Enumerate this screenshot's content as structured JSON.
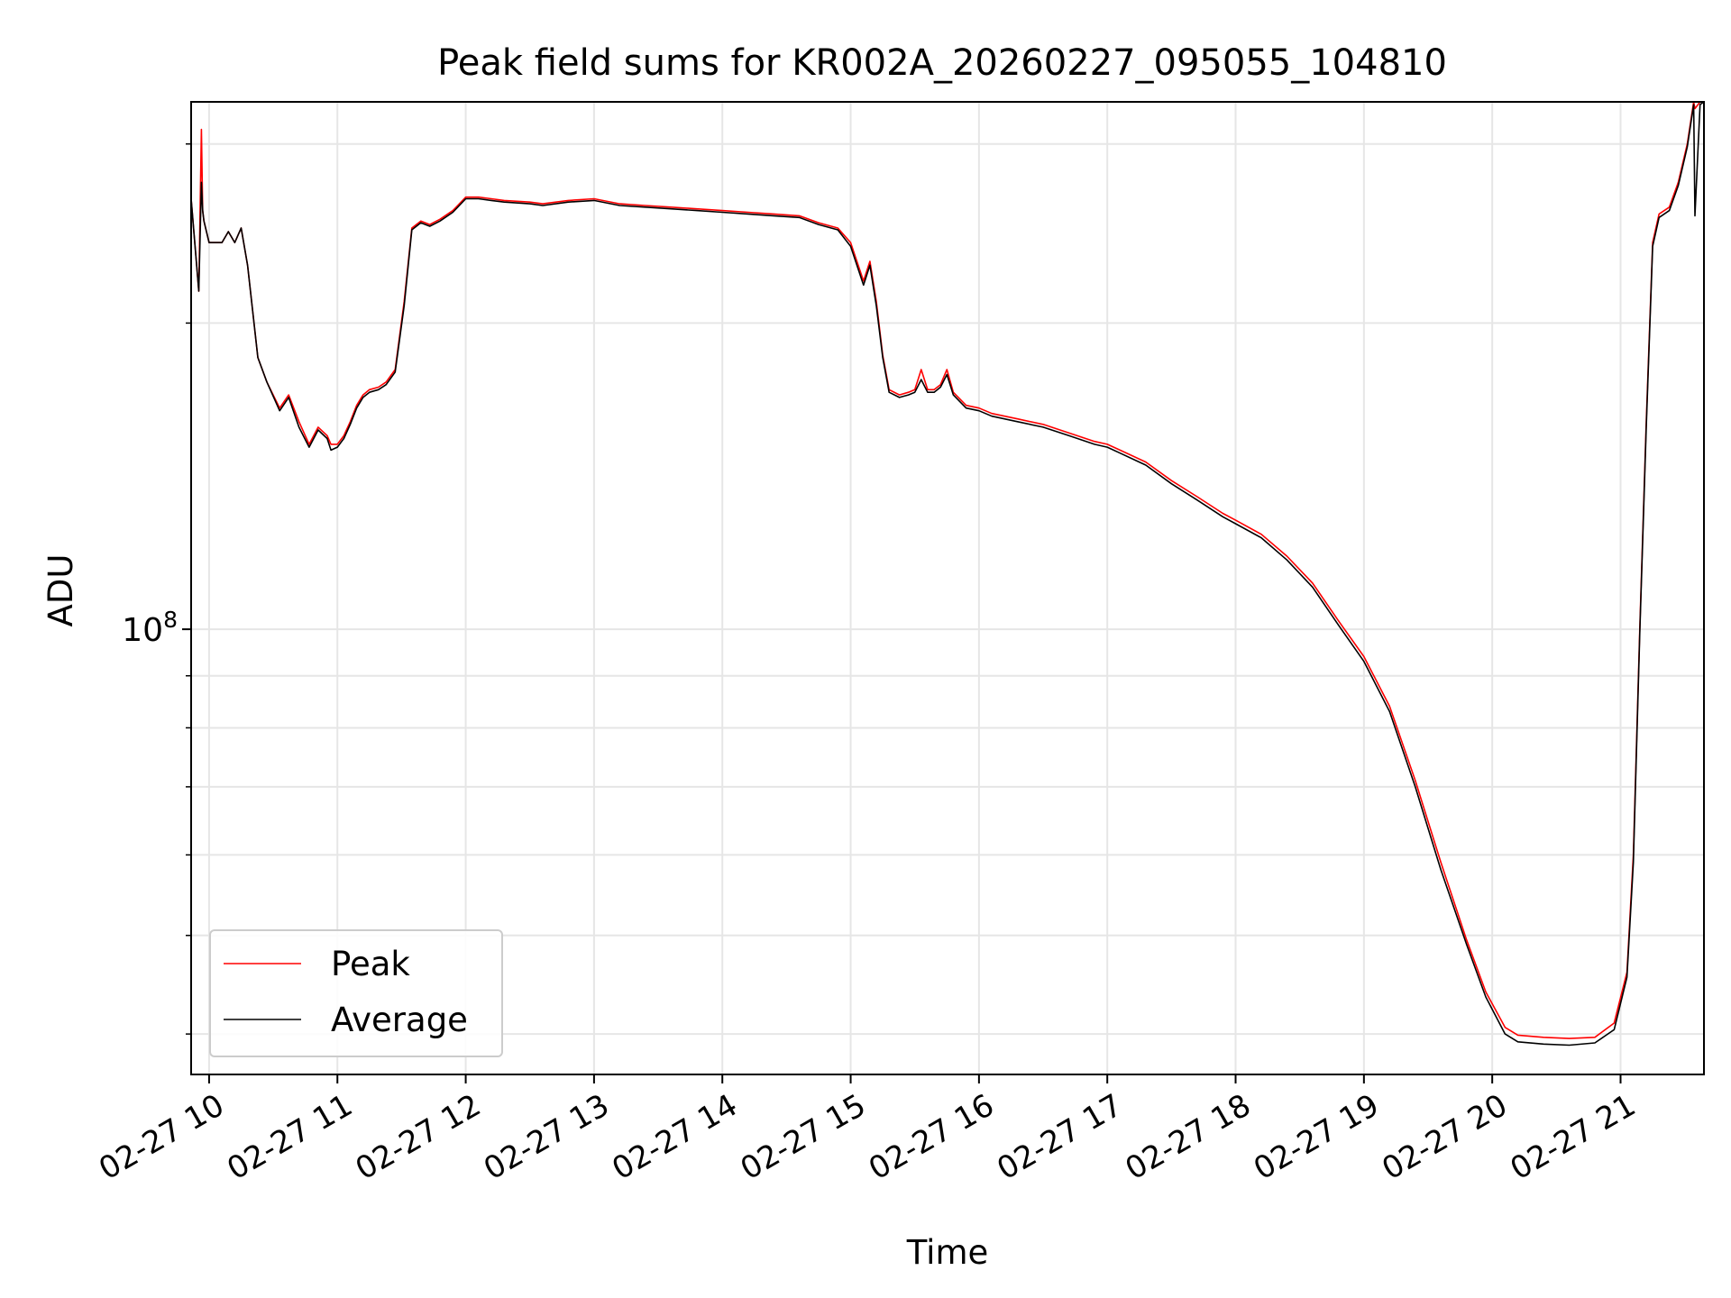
{
  "chart_data": {
    "type": "line",
    "title": "Peak field sums for KR002A_20260227_095055_104810",
    "xlabel": "Time",
    "ylabel": "ADU",
    "yscale": "log",
    "grid": true,
    "legend_position": "lower-left",
    "x_unit": "hours",
    "xlim": [
      9.86,
      21.65
    ],
    "ylim": [
      36500000,
      330000000
    ],
    "x_ticks": [
      {
        "value": 10,
        "label": "02-27 10"
      },
      {
        "value": 11,
        "label": "02-27 11"
      },
      {
        "value": 12,
        "label": "02-27 12"
      },
      {
        "value": 13,
        "label": "02-27 13"
      },
      {
        "value": 14,
        "label": "02-27 14"
      },
      {
        "value": 15,
        "label": "02-27 15"
      },
      {
        "value": 16,
        "label": "02-27 16"
      },
      {
        "value": 17,
        "label": "02-27 17"
      },
      {
        "value": 18,
        "label": "02-27 18"
      },
      {
        "value": 19,
        "label": "02-27 19"
      },
      {
        "value": 20,
        "label": "02-27 20"
      },
      {
        "value": 21,
        "label": "02-27 21"
      }
    ],
    "y_major_tick": {
      "value": 100000000,
      "label_base": "10",
      "label_exp": "8"
    },
    "y_minor_ticks": [
      40000000,
      50000000,
      60000000,
      70000000,
      80000000,
      90000000,
      200000000,
      300000000
    ],
    "x": [
      9.86,
      9.92,
      9.94,
      9.95,
      9.96,
      10.0,
      10.1,
      10.15,
      10.2,
      10.25,
      10.3,
      10.38,
      10.45,
      10.55,
      10.62,
      10.7,
      10.78,
      10.85,
      10.92,
      10.95,
      11.0,
      11.05,
      11.1,
      11.15,
      11.2,
      11.25,
      11.32,
      11.38,
      11.45,
      11.52,
      11.58,
      11.65,
      11.72,
      11.8,
      11.9,
      12.0,
      12.1,
      12.2,
      12.3,
      12.5,
      12.6,
      12.8,
      13.0,
      13.2,
      13.4,
      13.6,
      13.8,
      14.0,
      14.2,
      14.4,
      14.6,
      14.75,
      14.9,
      15.0,
      15.1,
      15.15,
      15.2,
      15.25,
      15.3,
      15.38,
      15.45,
      15.5,
      15.55,
      15.6,
      15.65,
      15.7,
      15.75,
      15.8,
      15.9,
      16.0,
      16.1,
      16.3,
      16.5,
      16.7,
      16.9,
      17.0,
      17.1,
      17.3,
      17.5,
      17.7,
      17.9,
      18.0,
      18.2,
      18.4,
      18.6,
      18.8,
      19.0,
      19.2,
      19.4,
      19.6,
      19.8,
      19.95,
      20.1,
      20.2,
      20.4,
      20.6,
      20.8,
      20.95,
      21.05,
      21.1,
      21.15,
      21.2,
      21.25,
      21.3,
      21.38,
      21.45,
      21.52,
      21.57,
      21.58,
      21.62,
      21.65
    ],
    "series": [
      {
        "name": "Peak",
        "color": "#ff0000",
        "values": [
          265000000,
          215000000,
          310000000,
          258000000,
          252000000,
          240000000,
          240000000,
          246000000,
          240000000,
          248000000,
          228000000,
          185000000,
          175000000,
          165000000,
          170000000,
          160000000,
          152000000,
          158000000,
          155000000,
          152000000,
          152000000,
          155000000,
          160000000,
          166000000,
          170000000,
          172000000,
          173000000,
          175000000,
          180000000,
          210000000,
          248000000,
          252000000,
          250000000,
          253000000,
          258000000,
          266000000,
          266000000,
          265000000,
          264000000,
          263000000,
          262000000,
          264000000,
          265000000,
          262000000,
          261000000,
          260000000,
          259000000,
          258000000,
          257000000,
          256000000,
          255000000,
          251000000,
          248000000,
          240000000,
          220000000,
          230000000,
          210000000,
          186000000,
          172000000,
          170000000,
          171000000,
          172000000,
          180000000,
          172000000,
          172000000,
          174000000,
          180000000,
          171000000,
          166000000,
          165000000,
          163000000,
          161000000,
          159000000,
          156000000,
          153000000,
          152000000,
          150000000,
          146000000,
          140000000,
          135000000,
          130000000,
          128000000,
          124000000,
          118000000,
          111000000,
          102000000,
          94000000,
          84000000,
          71000000,
          59000000,
          49500000,
          44000000,
          40600000,
          39900000,
          39700000,
          39600000,
          39700000,
          41000000,
          46000000,
          60000000,
          100000000,
          160000000,
          240000000,
          256000000,
          260000000,
          275000000,
          300000000,
          330000000,
          325000000,
          330000000,
          330000000
        ]
      },
      {
        "name": "Average",
        "color": "#000000",
        "values": [
          265000000,
          215000000,
          275000000,
          258000000,
          252000000,
          240000000,
          240000000,
          246000000,
          240000000,
          248000000,
          228000000,
          185000000,
          175000000,
          164000000,
          169000000,
          158000000,
          151000000,
          157000000,
          154000000,
          150000000,
          151000000,
          154000000,
          159000000,
          165000000,
          169000000,
          171000000,
          172000000,
          174000000,
          179000000,
          208000000,
          247000000,
          251000000,
          249000000,
          252000000,
          257000000,
          265000000,
          265000000,
          264000000,
          263000000,
          262000000,
          261000000,
          263000000,
          264000000,
          261000000,
          260000000,
          259000000,
          258000000,
          257000000,
          256000000,
          255000000,
          254000000,
          250000000,
          247000000,
          238000000,
          218000000,
          228000000,
          208000000,
          185000000,
          171000000,
          169000000,
          170000000,
          171000000,
          176000000,
          171000000,
          171000000,
          173000000,
          178000000,
          170000000,
          165000000,
          164000000,
          162000000,
          160000000,
          158000000,
          155000000,
          152000000,
          151000000,
          149000000,
          145000000,
          139000000,
          134000000,
          129000000,
          127000000,
          123000000,
          117000000,
          110000000,
          101000000,
          93000000,
          83000000,
          70000000,
          58000000,
          49000000,
          43500000,
          40000000,
          39300000,
          39100000,
          39000000,
          39200000,
          40400000,
          45500000,
          59000000,
          99000000,
          158000000,
          238000000,
          254000000,
          258000000,
          273000000,
          298000000,
          328000000,
          255000000,
          328000000,
          330000000
        ]
      }
    ]
  }
}
